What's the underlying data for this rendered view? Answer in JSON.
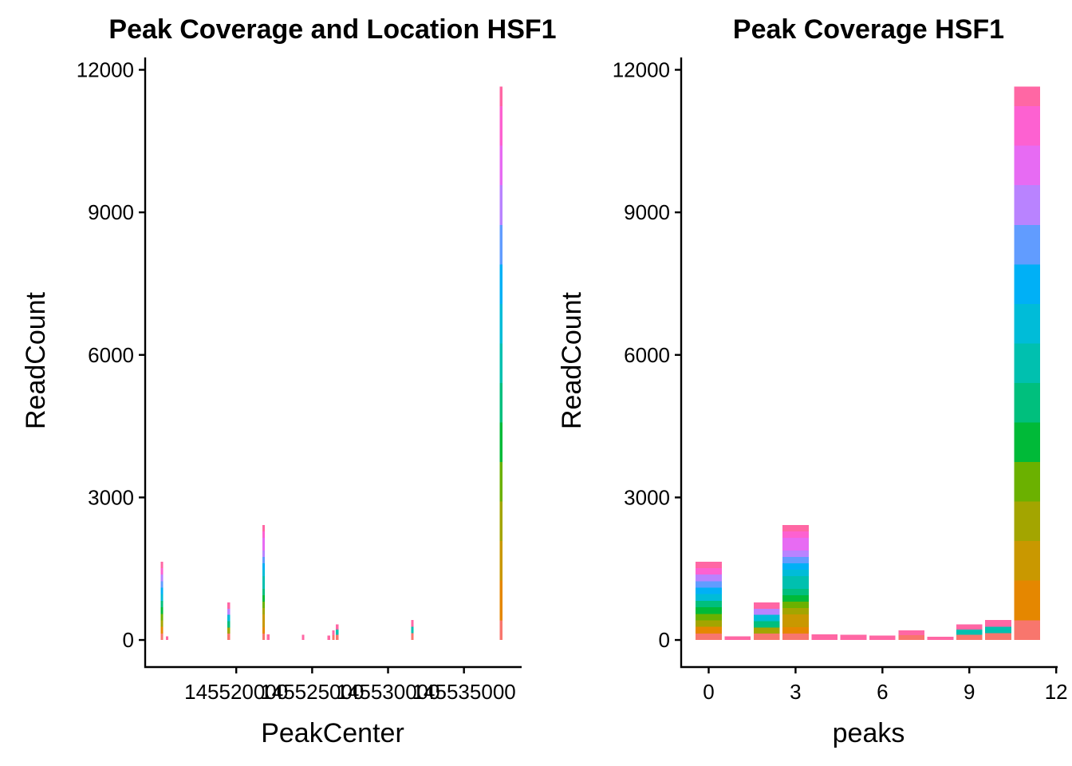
{
  "chart_data": [
    {
      "type": "bar",
      "title": "Peak Coverage and Location HSF1",
      "xlabel": "PeakCenter",
      "ylabel": "ReadCount",
      "xlim": [
        145514000,
        145538800
      ],
      "ylim": [
        -570,
        12260
      ],
      "x_tick_values": [
        145520000,
        145525000,
        145530000,
        145535000
      ],
      "x_tick_labels": [
        "145520000",
        "145525000",
        "145530000",
        "145535000"
      ],
      "y_ticks": [
        0,
        3000,
        6000,
        9000,
        12000
      ],
      "grid": false,
      "legend": "none",
      "bar_style": "stacked-thin",
      "bars": [
        {
          "x": 145515100,
          "value": 1650
        },
        {
          "x": 145515450,
          "value": 80
        },
        {
          "x": 145519500,
          "value": 790
        },
        {
          "x": 145521800,
          "value": 2420
        },
        {
          "x": 145522100,
          "value": 120
        },
        {
          "x": 145524400,
          "value": 110
        },
        {
          "x": 145526100,
          "value": 90
        },
        {
          "x": 145526400,
          "value": 200
        },
        {
          "x": 145526650,
          "value": 330
        },
        {
          "x": 145531600,
          "value": 420
        },
        {
          "x": 145537450,
          "value": 11650
        }
      ]
    },
    {
      "type": "bar",
      "title": "Peak Coverage HSF1",
      "xlabel": "peaks",
      "ylabel": "ReadCount",
      "xlim": [
        -0.95,
        12.05
      ],
      "ylim": [
        -570,
        12260
      ],
      "x_ticks": [
        0,
        3,
        6,
        9,
        12
      ],
      "y_ticks": [
        0,
        3000,
        6000,
        9000,
        12000
      ],
      "grid": false,
      "legend": "none",
      "bar_style": "stacked-wide",
      "x": [
        0,
        1,
        2,
        3,
        4,
        5,
        6,
        7,
        8,
        9,
        10,
        11
      ],
      "values": [
        1650,
        80,
        790,
        2420,
        120,
        110,
        90,
        200,
        70,
        330,
        420,
        11650
      ]
    }
  ]
}
